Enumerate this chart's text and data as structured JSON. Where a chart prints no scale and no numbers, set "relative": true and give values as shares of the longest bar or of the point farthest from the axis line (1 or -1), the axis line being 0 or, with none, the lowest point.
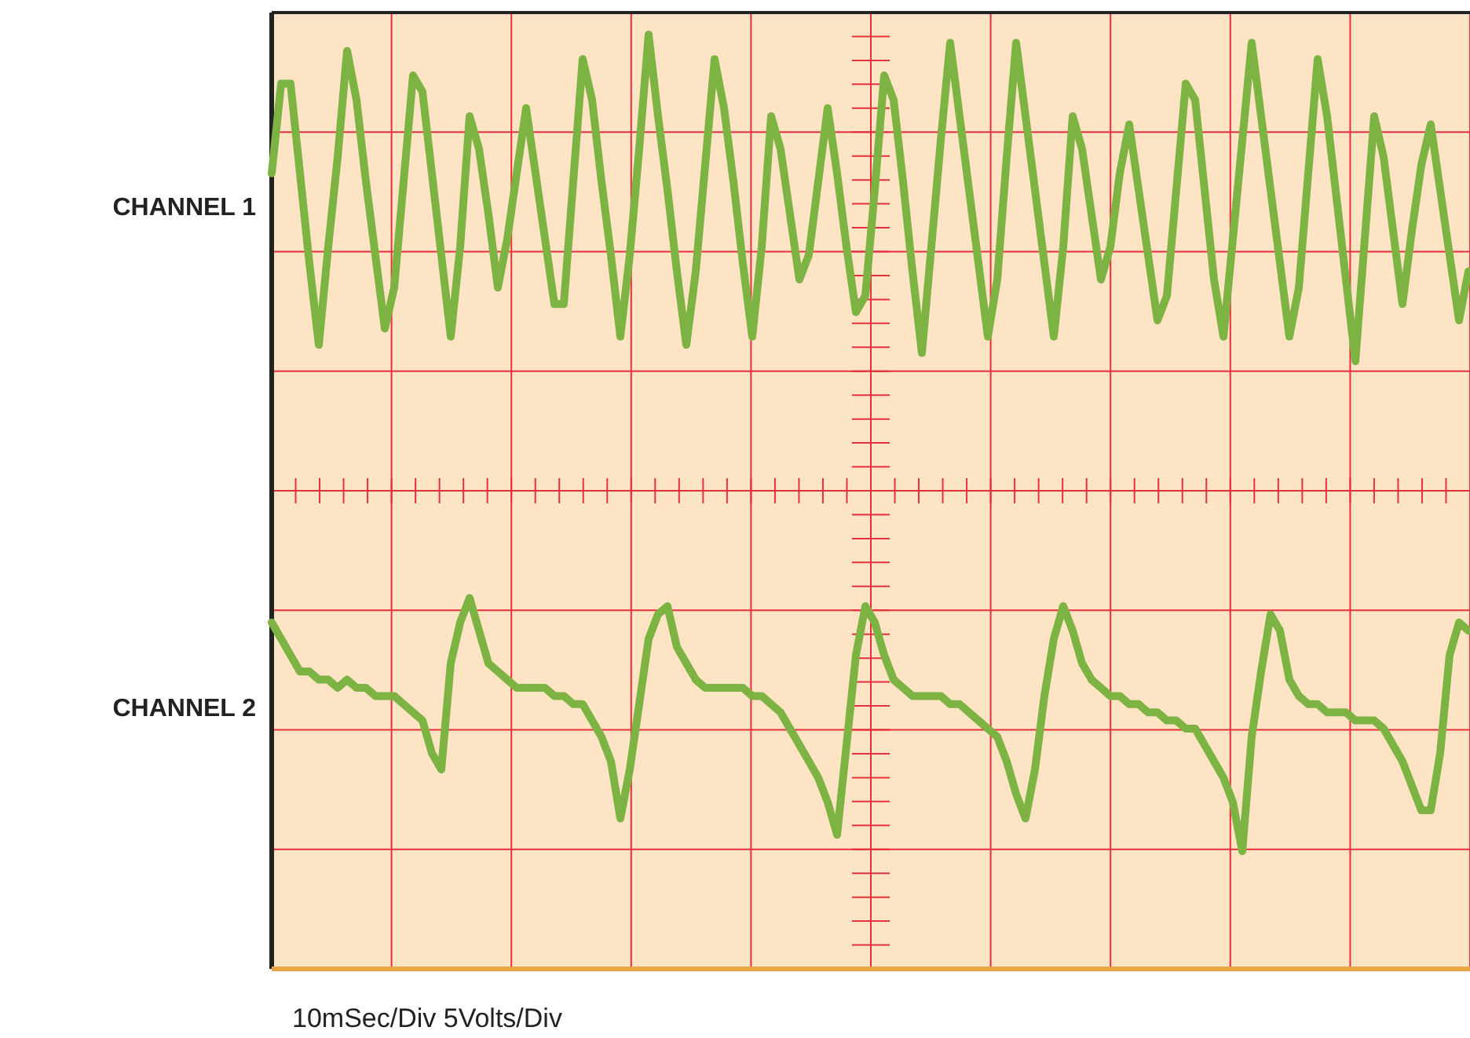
{
  "chart_data": {
    "type": "line",
    "relative": true,
    "grid": true,
    "marker": "none",
    "line_style": "solid",
    "annotations": [
      "10mSec/Div 5Volts/Div"
    ],
    "categories": [
      null,
      null,
      null,
      null,
      null,
      null,
      null,
      null,
      null,
      null,
      null,
      null,
      null,
      null,
      null,
      null,
      null,
      null,
      null,
      null,
      null,
      null,
      null,
      null,
      null,
      null,
      null,
      null,
      null,
      null,
      null,
      null,
      null,
      null,
      null,
      null,
      null,
      null,
      null,
      null,
      null,
      null,
      null,
      null,
      null,
      null,
      null,
      null,
      null,
      null,
      null,
      null,
      null,
      null,
      null,
      null,
      null,
      null,
      null,
      null,
      null,
      null,
      null,
      null,
      null,
      null,
      null,
      null,
      null,
      null,
      null,
      null,
      null,
      null,
      null,
      null,
      null,
      null,
      null,
      null,
      null,
      null,
      null,
      null,
      null,
      null,
      null,
      null,
      null,
      null,
      null,
      null,
      null,
      null,
      null,
      null,
      null,
      null,
      null,
      null,
      null,
      null,
      null,
      null,
      null,
      null,
      null,
      null,
      null,
      null,
      null,
      null,
      null,
      null,
      null,
      null,
      null,
      null,
      null,
      null,
      null,
      null,
      null,
      null,
      null,
      null,
      null,
      null
    ],
    "series": [
      {
        "name": "CHANNEL 1",
        "color": "#7cb342",
        "values": [
          0.83,
          0.94,
          0.94,
          0.83,
          0.72,
          0.62,
          0.74,
          0.85,
          0.98,
          0.92,
          0.82,
          0.73,
          0.64,
          0.69,
          0.82,
          0.95,
          0.93,
          0.83,
          0.73,
          0.63,
          0.74,
          0.9,
          0.86,
          0.78,
          0.69,
          0.75,
          0.83,
          0.91,
          0.83,
          0.75,
          0.67,
          0.67,
          0.82,
          0.97,
          0.92,
          0.82,
          0.73,
          0.63,
          0.73,
          0.86,
          1.0,
          0.9,
          0.81,
          0.71,
          0.62,
          0.71,
          0.84,
          0.97,
          0.91,
          0.82,
          0.72,
          0.63,
          0.74,
          0.9,
          0.86,
          0.78,
          0.7,
          0.73,
          0.82,
          0.91,
          0.83,
          0.74,
          0.66,
          0.68,
          0.81,
          0.95,
          0.92,
          0.82,
          0.71,
          0.61,
          0.74,
          0.87,
          0.99,
          0.9,
          0.81,
          0.72,
          0.63,
          0.7,
          0.85,
          0.99,
          0.9,
          0.81,
          0.72,
          0.63,
          0.74,
          0.9,
          0.86,
          0.78,
          0.7,
          0.74,
          0.83,
          0.89,
          0.81,
          0.73,
          0.65,
          0.68,
          0.81,
          0.94,
          0.92,
          0.81,
          0.7,
          0.63,
          0.75,
          0.87,
          0.99,
          0.9,
          0.81,
          0.72,
          0.63,
          0.69,
          0.83,
          0.97,
          0.9,
          0.8,
          0.7,
          0.6,
          0.75,
          0.9,
          0.85,
          0.76,
          0.67,
          0.76,
          0.84,
          0.89,
          0.81,
          0.73,
          0.65,
          0.71
        ]
      },
      {
        "name": "CHANNEL 2",
        "color": "#7cb342",
        "values": [
          0.28,
          0.26,
          0.24,
          0.22,
          0.22,
          0.21,
          0.21,
          0.2,
          0.21,
          0.2,
          0.2,
          0.19,
          0.19,
          0.19,
          0.18,
          0.17,
          0.16,
          0.12,
          0.1,
          0.23,
          0.28,
          0.31,
          0.27,
          0.23,
          0.22,
          0.21,
          0.2,
          0.2,
          0.2,
          0.2,
          0.19,
          0.19,
          0.18,
          0.18,
          0.16,
          0.14,
          0.11,
          0.04,
          0.1,
          0.18,
          0.26,
          0.29,
          0.3,
          0.25,
          0.23,
          0.21,
          0.2,
          0.2,
          0.2,
          0.2,
          0.2,
          0.19,
          0.19,
          0.18,
          0.17,
          0.15,
          0.13,
          0.11,
          0.09,
          0.06,
          0.02,
          0.13,
          0.24,
          0.3,
          0.28,
          0.24,
          0.21,
          0.2,
          0.19,
          0.19,
          0.19,
          0.19,
          0.18,
          0.18,
          0.17,
          0.16,
          0.15,
          0.14,
          0.11,
          0.07,
          0.04,
          0.1,
          0.19,
          0.26,
          0.3,
          0.27,
          0.23,
          0.21,
          0.2,
          0.19,
          0.19,
          0.18,
          0.18,
          0.17,
          0.17,
          0.16,
          0.16,
          0.15,
          0.15,
          0.13,
          0.11,
          0.09,
          0.06,
          0.0,
          0.14,
          0.22,
          0.29,
          0.27,
          0.21,
          0.19,
          0.18,
          0.18,
          0.17,
          0.17,
          0.17,
          0.16,
          0.16,
          0.16,
          0.15,
          0.13,
          0.11,
          0.08,
          0.05,
          0.05,
          0.12,
          0.24,
          0.28,
          0.27
        ]
      }
    ]
  }
}
